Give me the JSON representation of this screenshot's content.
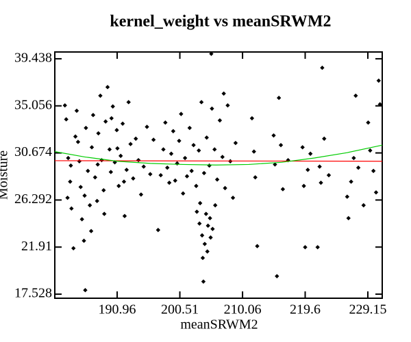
{
  "chart_data": {
    "type": "scatter",
    "title": "kernel_weight vs meanSRWM2",
    "x_label": "meanSRWM2",
    "y_label": "Moisture",
    "xlim": [
      181.46,
      231.34
    ],
    "ylim": [
      17.15,
      40.07
    ],
    "xticks": [
      190.96,
      200.51,
      210.06,
      219.6,
      229.15
    ],
    "yticks": [
      17.528,
      21.91,
      26.292,
      30.674,
      35.056,
      39.438
    ],
    "series": [
      {
        "type": "scatter",
        "color": "#000000",
        "x": [
          183.0,
          183.2,
          183.5,
          183.8,
          184.0,
          184.3,
          183.9,
          184.8,
          185.0,
          185.4,
          185.6,
          185.9,
          186.1,
          186.2,
          186.5,
          186.8,
          187.1,
          187.3,
          187.6,
          187.9,
          188.1,
          188.4,
          188.6,
          188.9,
          189.2,
          189.5,
          189.8,
          190.0,
          190.3,
          190.6,
          190.9,
          191.2,
          191.5,
          191.8,
          192.1,
          192.4,
          192.7,
          193.0,
          193.4,
          193.8,
          194.2,
          194.6,
          195.0,
          195.5,
          196.0,
          196.5,
          184.6,
          185.2,
          186.0,
          187.0,
          188.0,
          189.0,
          190.1,
          191.0,
          192.0,
          183.4,
          197.2,
          197.6,
          198.0,
          198.3,
          198.6,
          198.9,
          199.2,
          199.5,
          199.8,
          200.1,
          200.4,
          200.7,
          201.0,
          201.3,
          201.6,
          202.0,
          202.3,
          202.6,
          203.0,
          203.4,
          203.8,
          204.2,
          204.6,
          205.0,
          205.4,
          205.8,
          206.2,
          206.6,
          207.0,
          207.4,
          207.8,
          208.2,
          208.6,
          209.0,
          203.1,
          203.5,
          203.9,
          204.3,
          204.7,
          205.1,
          205.5,
          205.9,
          204.0,
          204.5,
          203.6,
          205.2,
          204.1,
          204.8,
          205.3,
          207.2,
          211.5,
          211.8,
          212.0,
          212.3,
          214.8,
          215.0,
          215.3,
          215.6,
          215.9,
          216.2,
          217.0,
          219.2,
          219.4,
          219.6,
          220.0,
          220.4,
          221.5,
          221.8,
          222.2,
          222.0,
          222.5,
          223.2,
          226.0,
          226.2,
          226.6,
          227.0,
          227.3,
          227.7,
          228.5,
          229.2,
          229.5,
          230.0,
          230.4,
          230.8,
          231.0
        ],
        "values": [
          35.1,
          33.8,
          30.2,
          28.0,
          25.5,
          21.8,
          29.5,
          34.6,
          31.7,
          27.5,
          24.5,
          22.5,
          17.9,
          33.0,
          29.0,
          25.8,
          31.2,
          34.2,
          28.4,
          26.2,
          32.5,
          36.0,
          30.0,
          27.2,
          33.6,
          36.8,
          31.0,
          28.9,
          35.0,
          29.8,
          32.8,
          27.6,
          30.4,
          33.4,
          24.8,
          29.1,
          35.4,
          31.5,
          28.3,
          32.0,
          30.0,
          26.8,
          29.4,
          33.1,
          28.7,
          31.9,
          32.2,
          29.9,
          26.7,
          23.4,
          29.6,
          25.0,
          33.9,
          31.1,
          28.0,
          26.5,
          23.5,
          28.6,
          31.0,
          33.5,
          29.3,
          27.9,
          30.6,
          32.7,
          28.1,
          29.7,
          31.8,
          34.3,
          26.9,
          30.2,
          28.5,
          33.0,
          29.0,
          31.4,
          27.6,
          30.9,
          35.4,
          28.8,
          32.1,
          29.5,
          34.8,
          31.0,
          28.2,
          33.7,
          30.3,
          27.4,
          35.1,
          29.9,
          26.5,
          31.6,
          25.2,
          24.1,
          23.0,
          22.2,
          21.5,
          24.6,
          23.6,
          25.8,
          20.9,
          25.0,
          26.0,
          22.8,
          18.7,
          23.9,
          39.9,
          36.2,
          33.9,
          30.8,
          28.4,
          22.0,
          32.3,
          29.6,
          19.2,
          35.8,
          31.4,
          27.3,
          30.0,
          31.2,
          27.6,
          21.9,
          29.1,
          30.6,
          21.9,
          29.4,
          38.6,
          27.9,
          32.0,
          28.6,
          26.6,
          24.6,
          28.0,
          30.2,
          36.0,
          29.3,
          25.8,
          33.5,
          30.9,
          29.0,
          27.0,
          37.4,
          35.2
        ]
      },
      {
        "type": "line",
        "color": "#ff0000",
        "x": [
          181.46,
          231.34
        ],
        "values": [
          29.95,
          29.9
        ]
      },
      {
        "type": "line",
        "color": "#00cc00",
        "x": [
          181.46,
          186,
          191,
          196,
          201,
          206,
          211,
          216,
          221,
          226,
          231.34
        ],
        "values": [
          30.8,
          30.3,
          29.9,
          29.7,
          29.6,
          29.55,
          29.6,
          29.8,
          30.2,
          30.7,
          31.4
        ]
      }
    ]
  }
}
